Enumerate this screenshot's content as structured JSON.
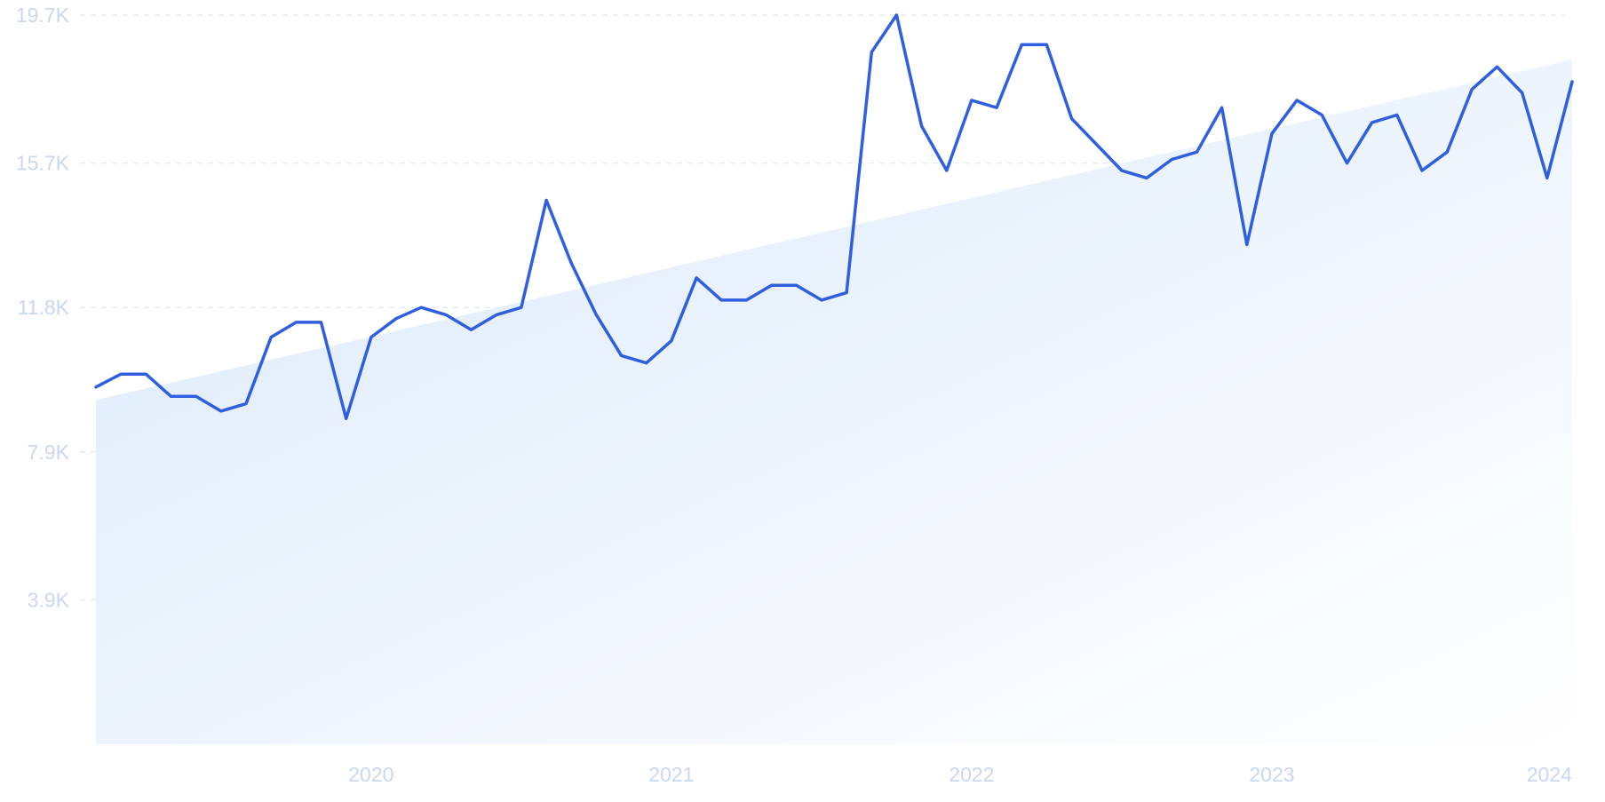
{
  "colors": {
    "line": "#2f5ee0",
    "area_start": "#dbe9fb",
    "area_end": "#ffffff",
    "grid": "#dfe6ef",
    "tick_label": "#c9d7ef"
  },
  "chart_data": {
    "type": "line",
    "title": "",
    "xlabel": "",
    "ylabel": "",
    "y_ticks": [
      {
        "value": 3900,
        "label": "3.9K"
      },
      {
        "value": 7900,
        "label": "7.9K"
      },
      {
        "value": 11800,
        "label": "11.8K"
      },
      {
        "value": 15700,
        "label": "15.7K"
      },
      {
        "value": 19700,
        "label": "19.7K"
      }
    ],
    "x_ticks": [
      {
        "value": "2020-01",
        "label": "2020"
      },
      {
        "value": "2021-01",
        "label": "2021"
      },
      {
        "value": "2022-01",
        "label": "2022"
      },
      {
        "value": "2023-01",
        "label": "2023"
      },
      {
        "value": "2024-01",
        "label": "2024"
      }
    ],
    "ylim": [
      0,
      19700
    ],
    "xlim": [
      "2019-02",
      "2024-01"
    ],
    "grid": true,
    "legend": "none",
    "series": [
      {
        "x": [
          "2019-02",
          "2019-03",
          "2019-04",
          "2019-05",
          "2019-06",
          "2019-07",
          "2019-08",
          "2019-09",
          "2019-10",
          "2019-11",
          "2019-12",
          "2020-01",
          "2020-02",
          "2020-03",
          "2020-04",
          "2020-05",
          "2020-06",
          "2020-07",
          "2020-08",
          "2020-09",
          "2020-10",
          "2020-11",
          "2020-12",
          "2021-01",
          "2021-02",
          "2021-03",
          "2021-04",
          "2021-05",
          "2021-06",
          "2021-07",
          "2021-08",
          "2021-09",
          "2021-10",
          "2021-11",
          "2021-12",
          "2022-01",
          "2022-02",
          "2022-03",
          "2022-04",
          "2022-05",
          "2022-06",
          "2022-07",
          "2022-08",
          "2022-09",
          "2022-10",
          "2022-11",
          "2022-12",
          "2023-01",
          "2023-02",
          "2023-03",
          "2023-04",
          "2023-05",
          "2023-06",
          "2023-07",
          "2023-08",
          "2023-09",
          "2023-10",
          "2023-11",
          "2023-12",
          "2024-01"
        ],
        "values": [
          9650,
          10000,
          10000,
          9400,
          9400,
          9000,
          9200,
          11000,
          11400,
          11400,
          8800,
          11000,
          11500,
          11800,
          11600,
          11200,
          11600,
          11800,
          14700,
          13000,
          11600,
          10500,
          10300,
          10900,
          12600,
          12000,
          12000,
          12400,
          12400,
          12000,
          12200,
          18700,
          19700,
          16700,
          15500,
          17400,
          17200,
          18900,
          18900,
          16900,
          16200,
          15500,
          15300,
          15800,
          16000,
          17200,
          13500,
          16500,
          17400,
          17000,
          15700,
          16800,
          17000,
          15500,
          16000,
          17700,
          18300,
          17600,
          15300,
          17900
        ],
        "trend": [
          9300,
          18500
        ]
      }
    ]
  }
}
